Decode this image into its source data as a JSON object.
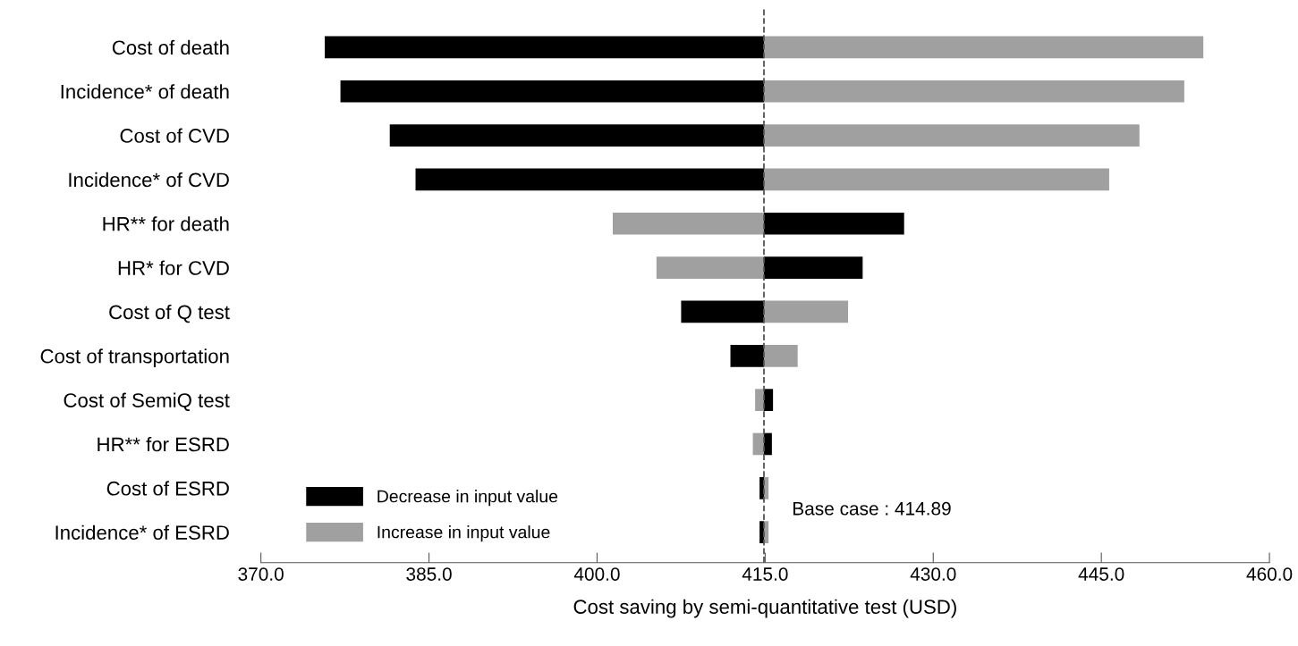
{
  "chart_data": {
    "type": "bar",
    "orientation": "horizontal",
    "xlabel": "Cost saving by semi-quantitative test (USD)",
    "categories": [
      "Cost of death",
      "Incidence* of death",
      "Cost of CVD",
      "Incidence* of CVD",
      "HR** for death",
      "HR* for CVD",
      "Cost of Q test",
      "Cost of transportation",
      "Cost of SemiQ test",
      "HR** for ESRD",
      "Cost of ESRD",
      "Incidence* of ESRD"
    ],
    "series": [
      {
        "name": "Decrease in input value",
        "color": "#000000",
        "base": [
          375.7,
          377.1,
          381.5,
          383.8,
          414.89,
          414.89,
          407.5,
          411.9,
          414.89,
          414.89,
          414.5,
          414.5
        ],
        "values": [
          39.19,
          37.79,
          33.39,
          31.09,
          12.51,
          8.81,
          7.39,
          2.99,
          0.81,
          0.71,
          0.39,
          0.39
        ]
      },
      {
        "name": "Increase in input value",
        "color": "#a0a0a0",
        "base": [
          414.89,
          414.89,
          414.89,
          414.89,
          401.4,
          405.3,
          414.89,
          414.89,
          414.1,
          413.9,
          414.89,
          414.89
        ],
        "values": [
          39.21,
          37.51,
          33.51,
          30.81,
          13.49,
          9.59,
          7.51,
          3.01,
          0.79,
          0.99,
          0.41,
          0.41
        ]
      }
    ],
    "xlim": [
      370,
      460
    ],
    "xticks": [
      {
        "value": 370,
        "label": "370.0"
      },
      {
        "value": 385,
        "label": "385.0"
      },
      {
        "value": 400,
        "label": "400.0"
      },
      {
        "value": 415,
        "label": "415.0"
      },
      {
        "value": 430,
        "label": "430.0"
      },
      {
        "value": 445,
        "label": "445.0"
      },
      {
        "value": 460,
        "label": "460.0"
      }
    ],
    "ref_lines": [
      {
        "axis": "x",
        "value": 414.89,
        "label": "Base case : 414.89",
        "color": "#555555",
        "line_style": "dashed"
      }
    ],
    "legend": "bottom left",
    "grid": false
  }
}
